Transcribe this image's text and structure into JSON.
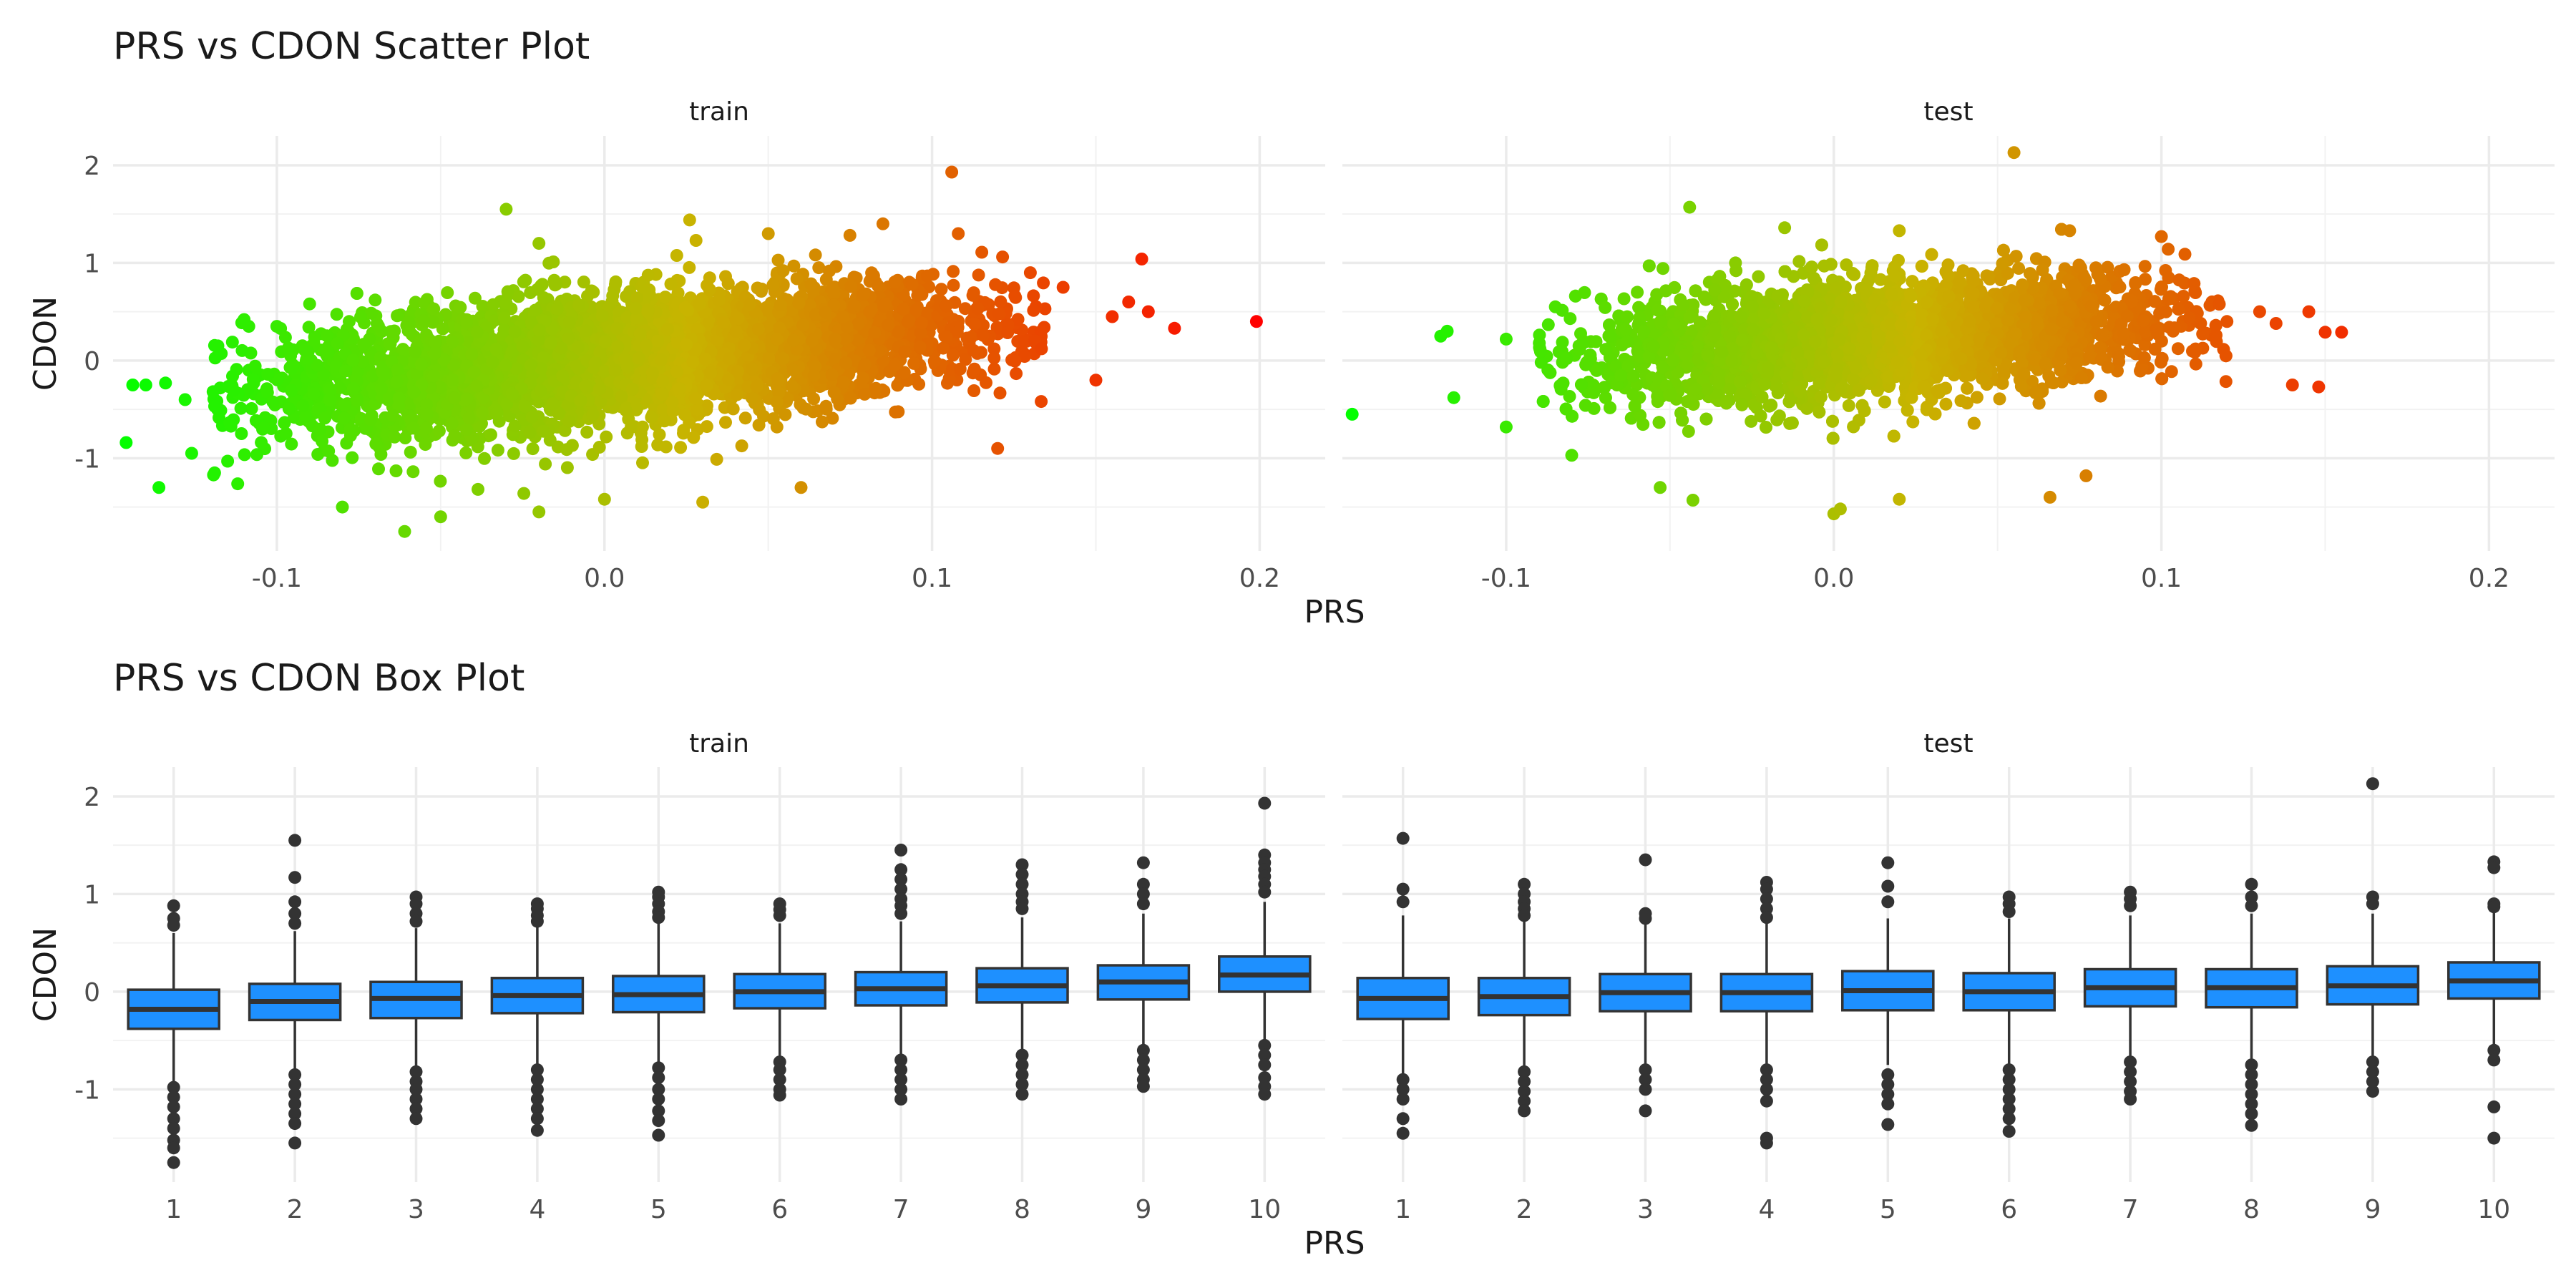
{
  "chart_data": [
    {
      "type": "scatter",
      "title": "PRS vs CDON Scatter Plot",
      "xlabel": "PRS",
      "ylabel": "CDON",
      "xlim": [
        -0.15,
        0.22
      ],
      "ylim": [
        -1.95,
        2.3
      ],
      "x_ticks": [
        -0.1,
        0.0,
        0.1,
        0.2
      ],
      "x_tick_labels": [
        "-0.1",
        "0.0",
        "0.1",
        "0.2"
      ],
      "y_ticks": [
        -1,
        0,
        1,
        2
      ],
      "y_tick_labels": [
        "-1",
        "0",
        "1",
        "2"
      ],
      "grid": true,
      "color_scale": {
        "low": "#00ff00",
        "mid": "#c8b400",
        "high": "#ff0000",
        "x_low": -0.15,
        "x_high": 0.2
      },
      "facets": [
        {
          "name": "train",
          "bulk": {
            "x_range": [
              -0.11,
              0.125
            ],
            "y_intercept": -0.25,
            "slope": 3.0,
            "spread": 0.32
          },
          "outliers": [
            {
              "x": -0.146,
              "y": -0.84
            },
            {
              "x": -0.144,
              "y": -0.25
            },
            {
              "x": -0.14,
              "y": -0.25
            },
            {
              "x": -0.136,
              "y": -1.3
            },
            {
              "x": -0.134,
              "y": -0.23
            },
            {
              "x": -0.128,
              "y": -0.4
            },
            {
              "x": -0.126,
              "y": -0.95
            },
            {
              "x": -0.119,
              "y": -1.15
            },
            {
              "x": -0.118,
              "y": 0.15
            },
            {
              "x": -0.11,
              "y": 0.42
            },
            {
              "x": -0.1,
              "y": 0.35
            },
            {
              "x": -0.09,
              "y": 0.58
            },
            {
              "x": -0.08,
              "y": -1.5
            },
            {
              "x": -0.07,
              "y": 0.62
            },
            {
              "x": -0.061,
              "y": -1.75
            },
            {
              "x": -0.05,
              "y": -1.6
            },
            {
              "x": -0.03,
              "y": 1.55
            },
            {
              "x": -0.02,
              "y": 1.2
            },
            {
              "x": -0.02,
              "y": -1.55
            },
            {
              "x": 0.0,
              "y": -1.42
            },
            {
              "x": 0.03,
              "y": -1.45
            },
            {
              "x": 0.026,
              "y": 1.44
            },
            {
              "x": 0.05,
              "y": 1.3
            },
            {
              "x": 0.06,
              "y": -1.3
            },
            {
              "x": 0.085,
              "y": 1.4
            },
            {
              "x": 0.106,
              "y": 1.93
            },
            {
              "x": 0.108,
              "y": 1.3
            },
            {
              "x": 0.12,
              "y": -0.9
            },
            {
              "x": 0.13,
              "y": 0.9
            },
            {
              "x": 0.14,
              "y": 0.75
            },
            {
              "x": 0.15,
              "y": -0.2
            },
            {
              "x": 0.155,
              "y": 0.45
            },
            {
              "x": 0.16,
              "y": 0.6
            },
            {
              "x": 0.164,
              "y": 1.04
            },
            {
              "x": 0.166,
              "y": 0.5
            },
            {
              "x": 0.174,
              "y": 0.33
            },
            {
              "x": 0.199,
              "y": 0.4
            }
          ]
        },
        {
          "name": "test",
          "bulk": {
            "x_range": [
              -0.08,
              0.11
            ],
            "y_intercept": -0.05,
            "slope": 2.2,
            "spread": 0.3
          },
          "outliers": [
            {
              "x": -0.147,
              "y": -0.55
            },
            {
              "x": -0.12,
              "y": 0.25
            },
            {
              "x": -0.118,
              "y": 0.3
            },
            {
              "x": -0.116,
              "y": -0.38
            },
            {
              "x": -0.1,
              "y": 0.22
            },
            {
              "x": -0.1,
              "y": -0.68
            },
            {
              "x": -0.085,
              "y": 0.55
            },
            {
              "x": -0.08,
              "y": -0.97
            },
            {
              "x": -0.06,
              "y": 0.7
            },
            {
              "x": -0.053,
              "y": -1.3
            },
            {
              "x": -0.044,
              "y": 1.57
            },
            {
              "x": -0.043,
              "y": -1.43
            },
            {
              "x": -0.03,
              "y": 1.0
            },
            {
              "x": -0.015,
              "y": 1.36
            },
            {
              "x": 0.0,
              "y": -1.57
            },
            {
              "x": 0.002,
              "y": -1.52
            },
            {
              "x": 0.02,
              "y": 1.33
            },
            {
              "x": 0.02,
              "y": -1.42
            },
            {
              "x": 0.055,
              "y": 2.13
            },
            {
              "x": 0.066,
              "y": -1.4
            },
            {
              "x": 0.072,
              "y": 1.33
            },
            {
              "x": 0.077,
              "y": -1.18
            },
            {
              "x": 0.08,
              "y": 0.95
            },
            {
              "x": 0.1,
              "y": 1.27
            },
            {
              "x": 0.12,
              "y": 0.4
            },
            {
              "x": 0.13,
              "y": 0.5
            },
            {
              "x": 0.135,
              "y": 0.38
            },
            {
              "x": 0.14,
              "y": -0.25
            },
            {
              "x": 0.145,
              "y": 0.5
            },
            {
              "x": 0.148,
              "y": -0.27
            },
            {
              "x": 0.15,
              "y": 0.29
            },
            {
              "x": 0.155,
              "y": 0.29
            }
          ]
        }
      ]
    },
    {
      "type": "box",
      "title": "PRS vs CDON Box Plot",
      "xlabel": "PRS",
      "ylabel": "CDON",
      "categories": [
        "1",
        "2",
        "3",
        "4",
        "5",
        "6",
        "7",
        "8",
        "9",
        "10"
      ],
      "ylim": [
        -1.95,
        2.3
      ],
      "y_ticks": [
        -1,
        0,
        1,
        2
      ],
      "y_tick_labels": [
        "-1",
        "0",
        "1",
        "2"
      ],
      "grid": true,
      "box_color": "#1e90ff",
      "outline_color": "#333333",
      "facets": [
        {
          "name": "train",
          "boxes": [
            {
              "q1": -0.38,
              "median": -0.18,
              "q3": 0.02,
              "whisker_low": -0.95,
              "whisker_high": 0.6,
              "outliers": [
                0.88,
                0.75,
                0.68,
                -0.98,
                -1.08,
                -1.18,
                -1.3,
                -1.4,
                -1.52,
                -1.6,
                -1.75
              ]
            },
            {
              "q1": -0.29,
              "median": -0.1,
              "q3": 0.08,
              "whisker_low": -0.8,
              "whisker_high": 0.62,
              "outliers": [
                1.55,
                1.17,
                0.92,
                0.8,
                0.7,
                -0.85,
                -0.95,
                -1.05,
                -1.15,
                -1.25,
                -1.35,
                -1.55
              ]
            },
            {
              "q1": -0.27,
              "median": -0.07,
              "q3": 0.1,
              "whisker_low": -0.78,
              "whisker_high": 0.65,
              "outliers": [
                0.97,
                0.9,
                0.8,
                0.72,
                -0.82,
                -0.92,
                -1.0,
                -1.1,
                -1.2,
                -1.3
              ]
            },
            {
              "q1": -0.22,
              "median": -0.04,
              "q3": 0.14,
              "whisker_low": -0.75,
              "whisker_high": 0.68,
              "outliers": [
                0.9,
                0.85,
                0.78,
                0.72,
                -0.8,
                -0.9,
                -1.0,
                -1.1,
                -1.2,
                -1.3,
                -1.42
              ]
            },
            {
              "q1": -0.21,
              "median": -0.03,
              "q3": 0.16,
              "whisker_low": -0.72,
              "whisker_high": 0.7,
              "outliers": [
                1.02,
                0.97,
                0.9,
                0.82,
                0.76,
                -0.78,
                -0.88,
                -1.0,
                -1.1,
                -1.22,
                -1.32,
                -1.47
              ]
            },
            {
              "q1": -0.17,
              "median": 0.0,
              "q3": 0.18,
              "whisker_low": -0.7,
              "whisker_high": 0.7,
              "outliers": [
                0.9,
                0.84,
                0.78,
                -0.72,
                -0.8,
                -0.9,
                -1.0,
                -1.06
              ]
            },
            {
              "q1": -0.14,
              "median": 0.03,
              "q3": 0.2,
              "whisker_low": -0.65,
              "whisker_high": 0.72,
              "outliers": [
                1.45,
                1.25,
                1.15,
                1.05,
                0.95,
                0.88,
                0.8,
                -0.7,
                -0.8,
                -0.9,
                -1.0,
                -1.1
              ]
            },
            {
              "q1": -0.11,
              "median": 0.06,
              "q3": 0.24,
              "whisker_low": -0.6,
              "whisker_high": 0.76,
              "outliers": [
                1.3,
                1.2,
                1.1,
                1.0,
                0.92,
                0.85,
                -0.65,
                -0.75,
                -0.85,
                -0.95,
                -1.05
              ]
            },
            {
              "q1": -0.08,
              "median": 0.1,
              "q3": 0.27,
              "whisker_low": -0.58,
              "whisker_high": 0.8,
              "outliers": [
                1.32,
                1.1,
                1.0,
                0.9,
                -0.6,
                -0.7,
                -0.8,
                -0.9,
                -0.97
              ]
            },
            {
              "q1": 0.0,
              "median": 0.17,
              "q3": 0.36,
              "whisker_low": -0.5,
              "whisker_high": 0.92,
              "outliers": [
                1.93,
                1.4,
                1.32,
                1.25,
                1.18,
                1.1,
                1.02,
                -0.55,
                -0.65,
                -0.75,
                -0.88,
                -0.97,
                -1.05
              ]
            }
          ]
        },
        {
          "name": "test",
          "boxes": [
            {
              "q1": -0.28,
              "median": -0.07,
              "q3": 0.14,
              "whisker_low": -0.85,
              "whisker_high": 0.78,
              "outliers": [
                1.57,
                1.05,
                0.92,
                -0.9,
                -1.0,
                -1.1,
                -1.3,
                -1.45
              ]
            },
            {
              "q1": -0.24,
              "median": -0.05,
              "q3": 0.14,
              "whisker_low": -0.78,
              "whisker_high": 0.72,
              "outliers": [
                1.1,
                1.0,
                0.92,
                0.85,
                0.78,
                -0.82,
                -0.92,
                -1.02,
                -1.12,
                -1.22
              ]
            },
            {
              "q1": -0.2,
              "median": -0.01,
              "q3": 0.18,
              "whisker_low": -0.75,
              "whisker_high": 0.7,
              "outliers": [
                1.35,
                0.8,
                0.75,
                -0.8,
                -0.9,
                -1.0,
                -1.22
              ]
            },
            {
              "q1": -0.2,
              "median": -0.01,
              "q3": 0.18,
              "whisker_low": -0.75,
              "whisker_high": 0.7,
              "outliers": [
                1.12,
                1.05,
                0.95,
                0.85,
                0.76,
                -0.8,
                -0.9,
                -1.0,
                -1.12,
                -1.5,
                -1.55
              ]
            },
            {
              "q1": -0.19,
              "median": 0.01,
              "q3": 0.21,
              "whisker_low": -0.75,
              "whisker_high": 0.75,
              "outliers": [
                1.32,
                1.08,
                0.92,
                -0.85,
                -0.95,
                -1.05,
                -1.15,
                -1.36
              ]
            },
            {
              "q1": -0.19,
              "median": 0.0,
              "q3": 0.19,
              "whisker_low": -0.75,
              "whisker_high": 0.75,
              "outliers": [
                0.97,
                0.9,
                0.82,
                -0.8,
                -0.9,
                -1.0,
                -1.1,
                -1.2,
                -1.3,
                -1.43
              ]
            },
            {
              "q1": -0.15,
              "median": 0.04,
              "q3": 0.23,
              "whisker_low": -0.7,
              "whisker_high": 0.78,
              "outliers": [
                1.02,
                0.95,
                0.88,
                -0.72,
                -0.82,
                -0.92,
                -1.02,
                -1.1
              ]
            },
            {
              "q1": -0.16,
              "median": 0.04,
              "q3": 0.23,
              "whisker_low": -0.7,
              "whisker_high": 0.8,
              "outliers": [
                1.1,
                0.97,
                0.88,
                -0.75,
                -0.85,
                -0.95,
                -1.05,
                -1.15,
                -1.25,
                -1.37
              ]
            },
            {
              "q1": -0.13,
              "median": 0.06,
              "q3": 0.26,
              "whisker_low": -0.68,
              "whisker_high": 0.8,
              "outliers": [
                2.13,
                0.97,
                0.9,
                -0.72,
                -0.82,
                -0.92,
                -1.02
              ]
            },
            {
              "q1": -0.07,
              "median": 0.11,
              "q3": 0.3,
              "whisker_low": -0.55,
              "whisker_high": 0.85,
              "outliers": [
                1.33,
                1.27,
                0.9,
                0.87,
                -0.6,
                -0.7,
                -1.18,
                -1.5
              ]
            }
          ]
        }
      ]
    }
  ]
}
